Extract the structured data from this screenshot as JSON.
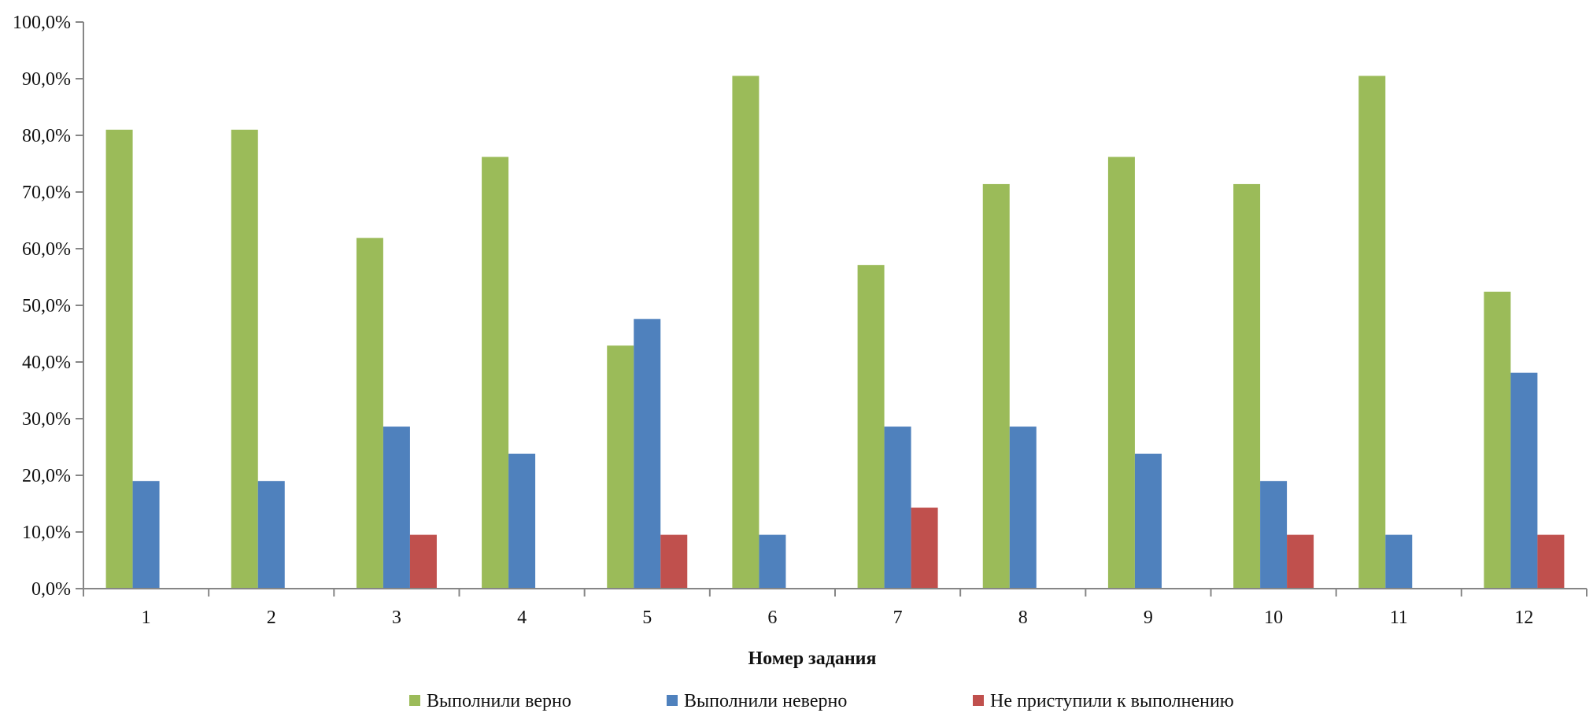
{
  "chart_data": {
    "type": "bar",
    "title": "",
    "xlabel": "Номер задания",
    "ylabel": "",
    "categories": [
      "1",
      "2",
      "3",
      "4",
      "5",
      "6",
      "7",
      "8",
      "9",
      "10",
      "11",
      "12"
    ],
    "y_ticks": [
      "0,0%",
      "10,0%",
      "20,0%",
      "30,0%",
      "40,0%",
      "50,0%",
      "60,0%",
      "70,0%",
      "80,0%",
      "90,0%",
      "100,0%"
    ],
    "ylim": [
      0,
      100
    ],
    "grid": false,
    "legend_position": "bottom",
    "series": [
      {
        "name": "Выполнили верно",
        "color": "#9BBB59",
        "values": [
          81.0,
          81.0,
          61.9,
          76.2,
          42.9,
          90.5,
          57.1,
          71.4,
          76.2,
          71.4,
          90.5,
          52.4
        ]
      },
      {
        "name": "Выполнили неверно",
        "color": "#4F81BD",
        "values": [
          19.0,
          19.0,
          28.6,
          23.8,
          47.6,
          9.5,
          28.6,
          28.6,
          23.8,
          19.0,
          9.5,
          38.1
        ]
      },
      {
        "name": "Не приступили к выполнению",
        "color": "#C0504D",
        "values": [
          0,
          0,
          9.5,
          0,
          9.5,
          0,
          14.3,
          0,
          0,
          9.5,
          0,
          9.5
        ]
      }
    ]
  }
}
